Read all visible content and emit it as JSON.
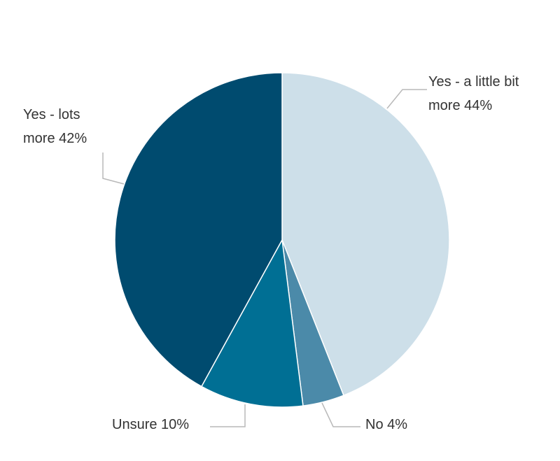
{
  "chart_data": {
    "type": "pie",
    "categories": [
      "Yes - a little bit more",
      "No",
      "Unsure",
      "Yes - lots more"
    ],
    "values": [
      44,
      4,
      10,
      42
    ],
    "value_labels": [
      "44%",
      "4%",
      "10%",
      "42%"
    ],
    "colors": [
      "#cddfe9",
      "#4b8aa9",
      "#006f94",
      "#004b6f"
    ]
  }
}
